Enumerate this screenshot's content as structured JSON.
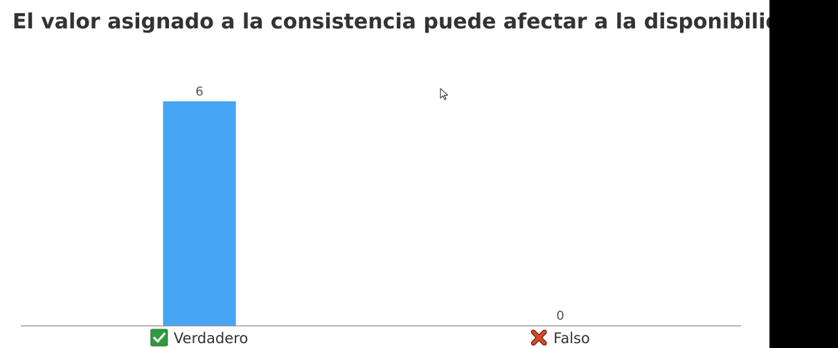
{
  "question": {
    "title": "El valor asignado a la consistencia puede afectar a la disponibilidad."
  },
  "chart_data": {
    "type": "bar",
    "categories": [
      "Verdadero",
      "Falso"
    ],
    "values": [
      6,
      0
    ],
    "category_icons": [
      "check-mark-icon",
      "cross-mark-icon"
    ],
    "ylim": [
      0,
      6
    ],
    "grid": false,
    "colors": {
      "bar": "#46A6F5",
      "bar_border": "#3E9BE8",
      "axis": "#8A8A8A",
      "check_green": "#2E9B3E",
      "cross_red": "#D94A2B"
    }
  }
}
